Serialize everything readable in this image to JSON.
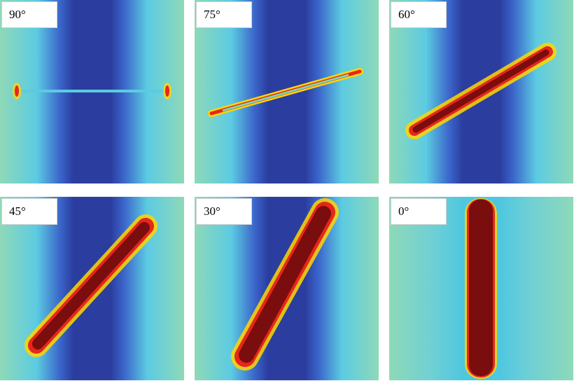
{
  "figure": {
    "panels": [
      {
        "label": "90°"
      },
      {
        "label": "75°"
      },
      {
        "label": "60°"
      },
      {
        "label": "45°"
      },
      {
        "label": "30°"
      },
      {
        "label": "0°"
      }
    ],
    "colormap": {
      "background": "#4fc7e0",
      "green": "#7fd6b0",
      "low": "#2b3d9e",
      "mid_low": "#3a63c9",
      "high": "#ffd700",
      "hot": "#e8261b",
      "max": "#7a0d0d"
    }
  }
}
